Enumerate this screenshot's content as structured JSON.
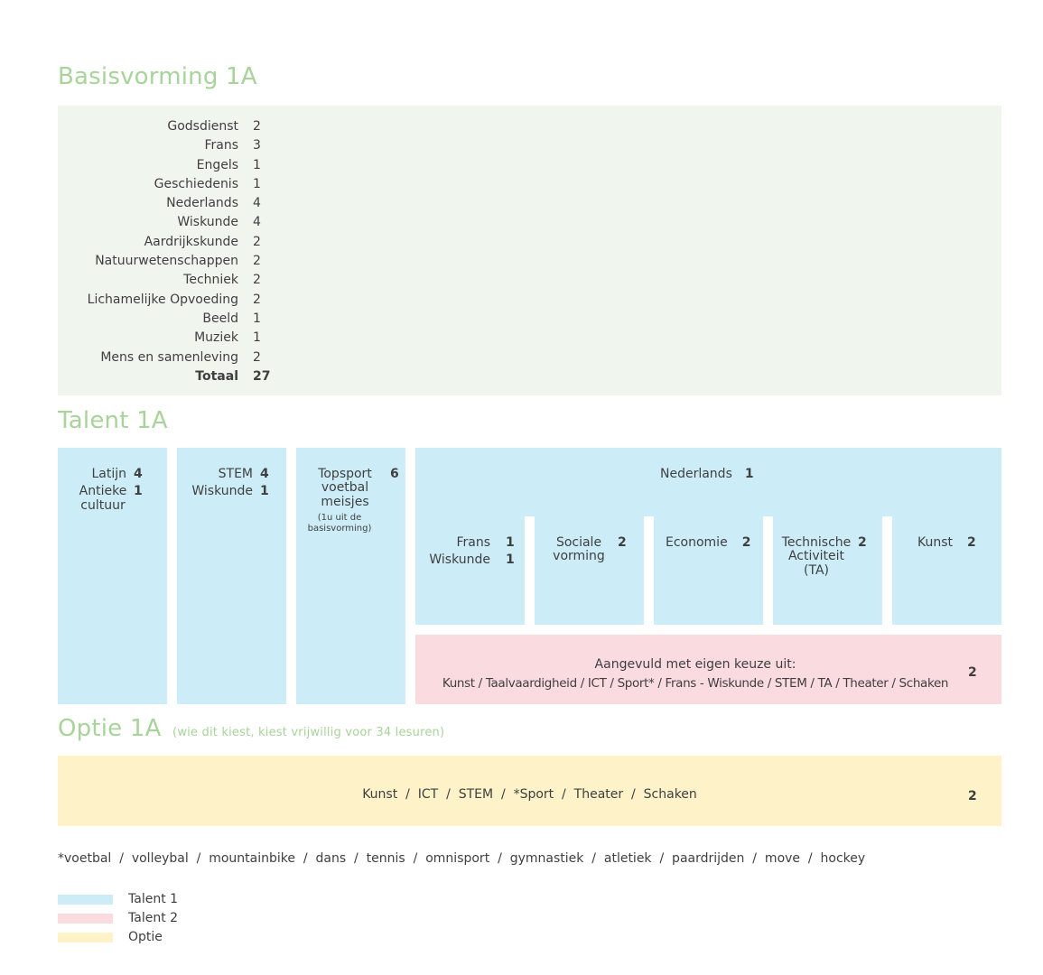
{
  "basis": {
    "title": "Basisvorming 1A",
    "rows": [
      {
        "label": "Godsdienst",
        "value": "2"
      },
      {
        "label": "Frans",
        "value": "3"
      },
      {
        "label": "Engels",
        "value": "1"
      },
      {
        "label": "Geschiedenis",
        "value": "1"
      },
      {
        "label": "Nederlands",
        "value": "4"
      },
      {
        "label": "Wiskunde",
        "value": "4"
      },
      {
        "label": "Aardrijkskunde",
        "value": "2"
      },
      {
        "label": "Natuurwetenschappen",
        "value": "2"
      },
      {
        "label": "Techniek",
        "value": "2"
      },
      {
        "label": "Lichamelijke Opvoeding",
        "value": "2"
      },
      {
        "label": "Beeld",
        "value": "1"
      },
      {
        "label": "Muziek",
        "value": "1"
      },
      {
        "label": "Mens en samenleving",
        "value": "2"
      }
    ],
    "total_label": "Totaal",
    "total_value": "27"
  },
  "talent": {
    "title": "Talent 1A",
    "latijn": {
      "l1": "Latijn",
      "v1": "4",
      "l2": "Antieke cultuur",
      "v2": "1"
    },
    "stem": {
      "l1": "STEM",
      "v1": "4",
      "l2": "Wiskunde",
      "v2": "1"
    },
    "topsport": {
      "l1": "Topsport voetbal meisjes",
      "v1": "6",
      "note": "(1u uit de basisvorming)"
    },
    "nederlands": {
      "label": "Nederlands",
      "value": "1"
    },
    "frans": {
      "l1": "Frans",
      "v1": "1",
      "l2": "Wiskunde",
      "v2": "1"
    },
    "sociale": {
      "label": "Sociale vorming",
      "value": "2"
    },
    "economie": {
      "label": "Economie",
      "value": "2"
    },
    "technische": {
      "label": "Technische Activiteit (TA)",
      "value": "2"
    },
    "kunst": {
      "label": "Kunst",
      "value": "2"
    },
    "keuze": {
      "line1": "Aangevuld met eigen keuze uit:",
      "line2": "Kunst / Taalvaardigheid / ICT / Sport* / Frans - Wiskunde / STEM / TA / Theater / Schaken",
      "value": "2"
    }
  },
  "optie": {
    "title": "Optie 1A",
    "subtitle": "(wie dit kiest, kiest vrijwillig voor 34 lesuren)",
    "choices": "Kunst  /  ICT  /  STEM  /  *Sport  /  Theater  /  Schaken",
    "value": "2"
  },
  "sports_footnote": "*voetbal  /  volleybal  /  mountainbike  /  dans  /  tennis  /  omnisport  /  gymnastiek  /  atletiek  /  paardrijden  /  move  /  hockey",
  "legend": [
    {
      "label": "Talent 1",
      "color": "#ccedf8"
    },
    {
      "label": "Talent 2",
      "color": "#fadbe0"
    },
    {
      "label": "Optie",
      "color": "#fdf2c8"
    }
  ],
  "colors": {
    "heading": "#a8d39a",
    "basis_bg": "#f0f5ee",
    "talent1": "#ccedf8",
    "talent2": "#fadbe0",
    "optie": "#fdf2c8"
  }
}
